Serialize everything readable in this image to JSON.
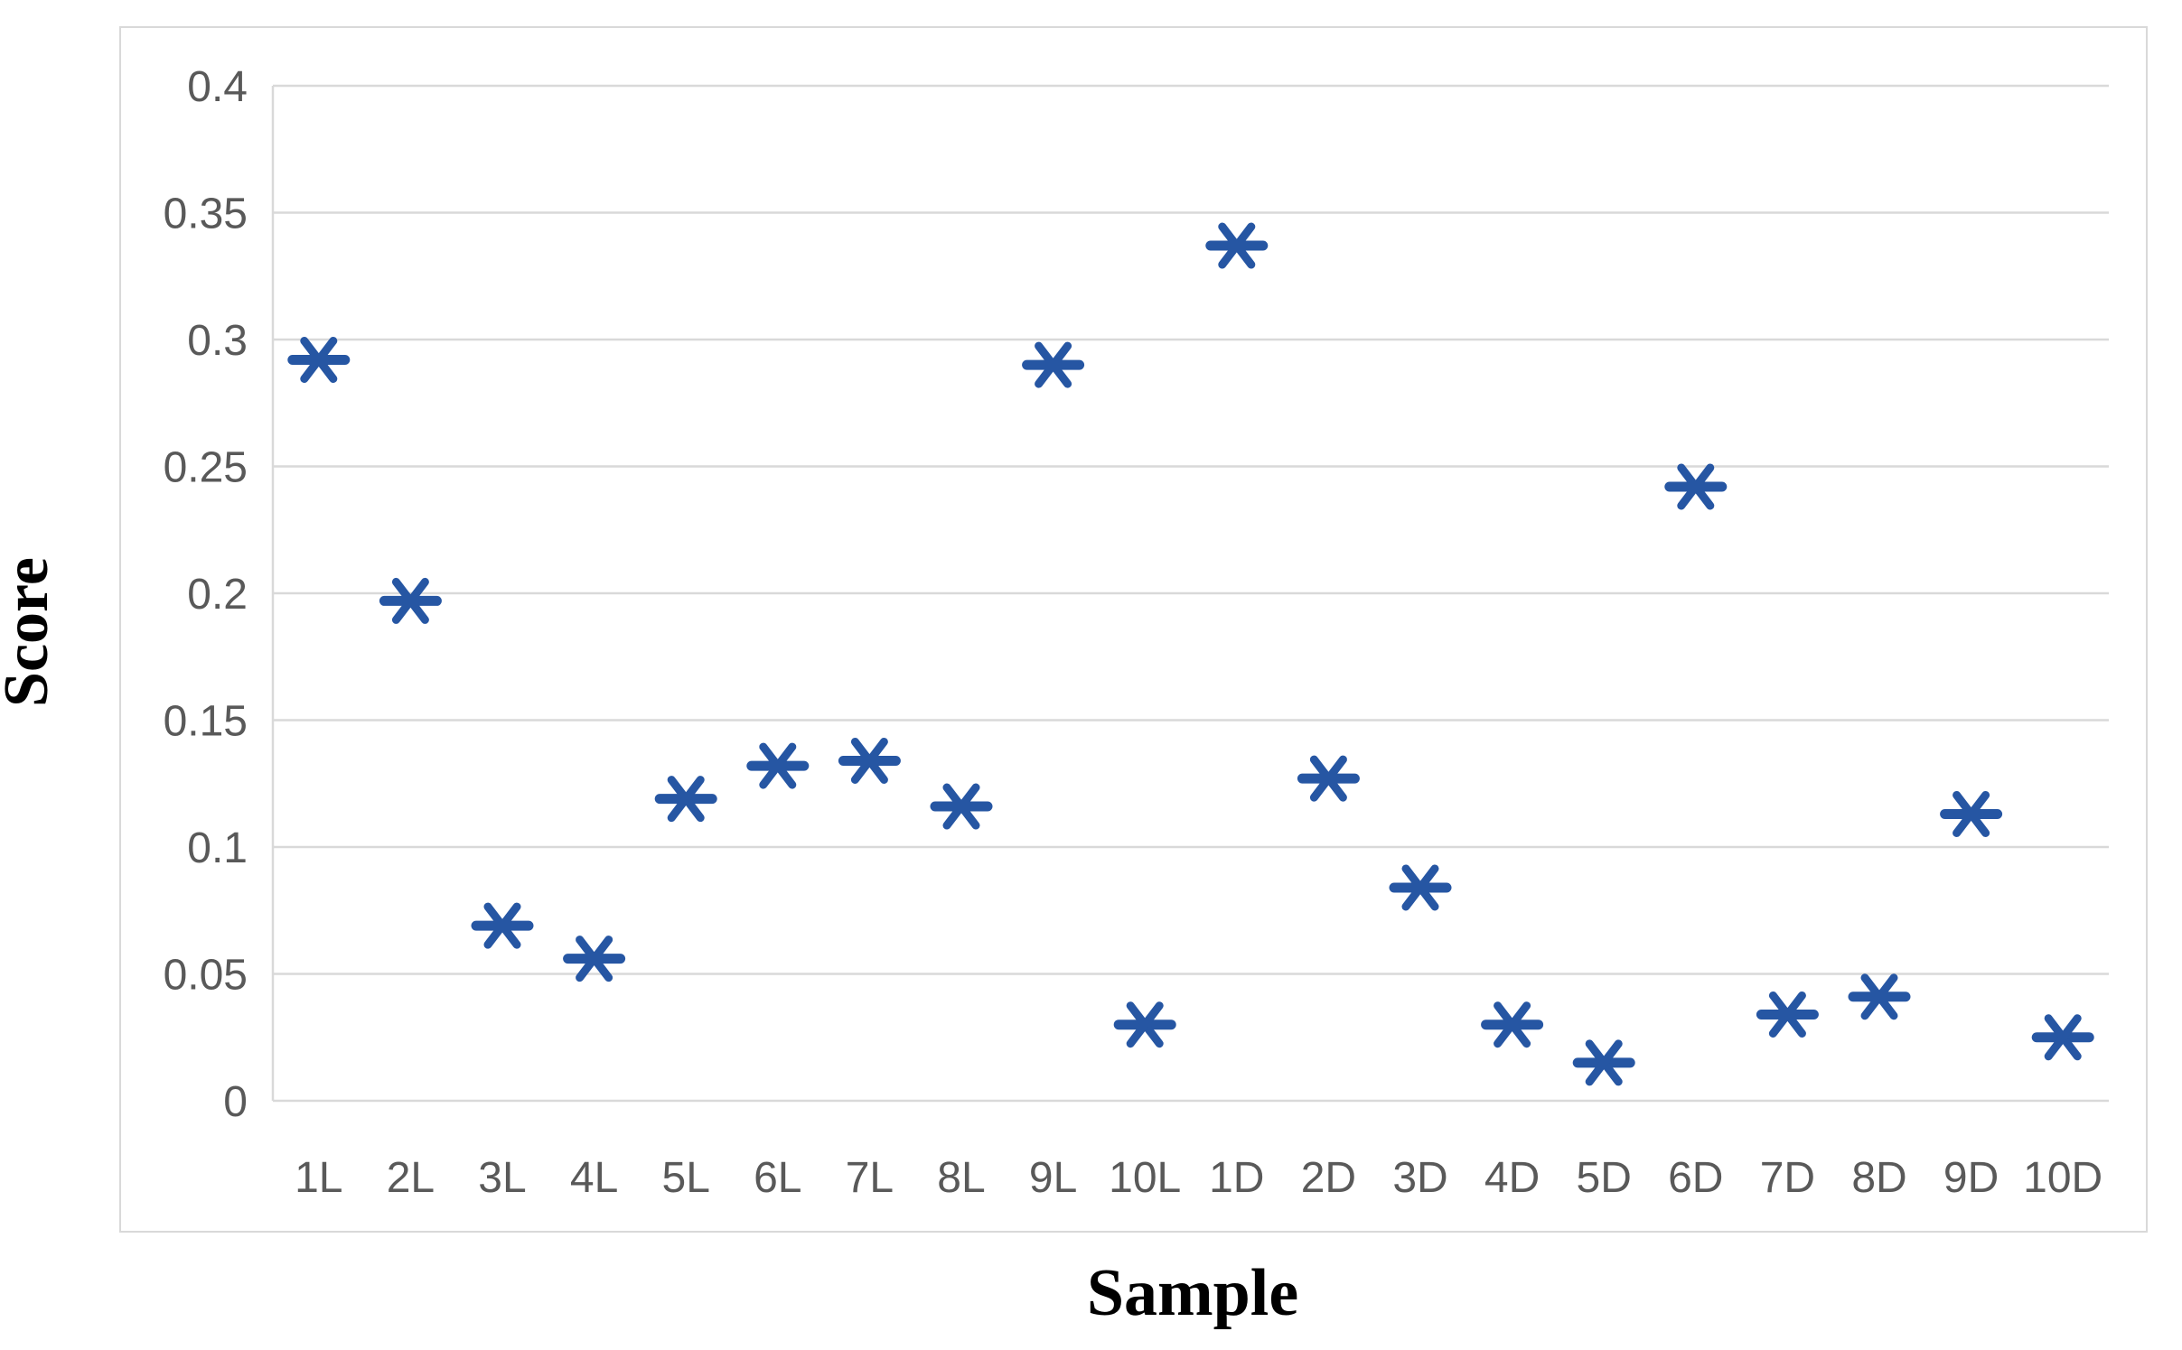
{
  "chart_data": {
    "type": "scatter",
    "title": "",
    "xlabel": "Sample",
    "ylabel": "Score",
    "categories": [
      "1L",
      "2L",
      "3L",
      "4L",
      "5L",
      "6L",
      "7L",
      "8L",
      "9L",
      "10L",
      "1D",
      "2D",
      "3D",
      "4D",
      "5D",
      "6D",
      "7D",
      "8D",
      "9D",
      "10D"
    ],
    "values": [
      0.292,
      0.197,
      0.069,
      0.056,
      0.119,
      0.132,
      0.134,
      0.116,
      0.29,
      0.03,
      0.337,
      0.127,
      0.084,
      0.03,
      0.015,
      0.242,
      0.034,
      0.041,
      0.113,
      0.025
    ],
    "series_name": "Score",
    "ylim": [
      0,
      0.4
    ],
    "ytick_step": 0.05,
    "ytick_labels": [
      "0",
      "0.05",
      "0.1",
      "0.15",
      "0.2",
      "0.25",
      "0.3",
      "0.35",
      "0.4"
    ],
    "grid": "horizontal",
    "legend_position": "none",
    "marker_style": "six-arm-asterisk",
    "colors": {
      "marker": "#2656a3",
      "gridline": "#d9d9d9",
      "frame": "#d9d9d9",
      "axis_line": "#d9d9d9",
      "tick_label": "#595959",
      "axis_title": "#000000",
      "background": "#ffffff"
    }
  }
}
